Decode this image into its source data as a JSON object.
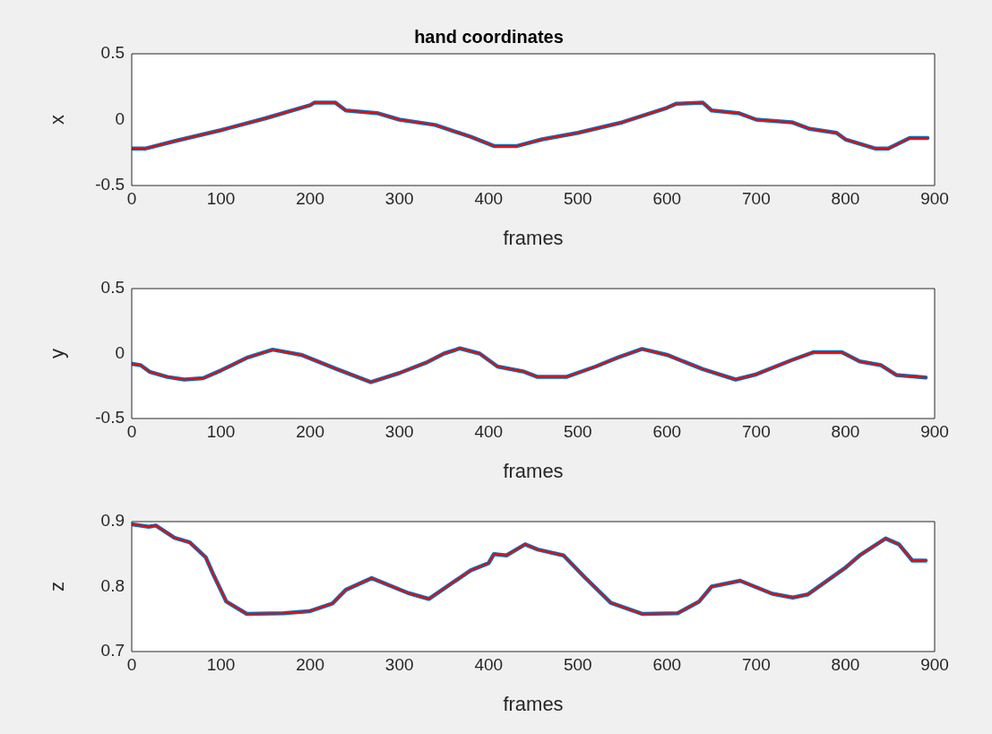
{
  "chart_data": [
    {
      "type": "line",
      "title": "hand coordinates",
      "xlabel": "frames",
      "ylabel": "x",
      "xlim": [
        0,
        900
      ],
      "xticks": [
        0,
        100,
        200,
        300,
        400,
        500,
        600,
        700,
        800,
        900
      ],
      "ylim": [
        -0.5,
        0.5
      ],
      "yticks": [
        -0.5,
        0,
        0.5
      ],
      "x": [
        0,
        15,
        50,
        100,
        150,
        200,
        205,
        228,
        240,
        275,
        300,
        340,
        380,
        406,
        432,
        460,
        500,
        550,
        600,
        610,
        640,
        650,
        680,
        700,
        740,
        760,
        790,
        800,
        834,
        848,
        872,
        892
      ],
      "series": [
        {
          "color": "#0072bd",
          "values": [
            -0.22,
            -0.22,
            -0.16,
            -0.08,
            0.01,
            0.11,
            0.13,
            0.13,
            0.07,
            0.05,
            0.0,
            -0.04,
            -0.13,
            -0.2,
            -0.2,
            -0.15,
            -0.1,
            -0.02,
            0.09,
            0.12,
            0.13,
            0.07,
            0.05,
            0.0,
            -0.02,
            -0.07,
            -0.1,
            -0.15,
            -0.22,
            -0.22,
            -0.14,
            -0.14
          ]
        },
        {
          "color": "#ff0000",
          "values": [
            -0.22,
            -0.22,
            -0.16,
            -0.08,
            0.01,
            0.11,
            0.13,
            0.13,
            0.07,
            0.05,
            0.0,
            -0.04,
            -0.13,
            -0.2,
            -0.2,
            -0.15,
            -0.1,
            -0.02,
            0.09,
            0.12,
            0.13,
            0.07,
            0.05,
            0.0,
            -0.02,
            -0.07,
            -0.1,
            -0.15,
            -0.22,
            -0.22,
            -0.14,
            -0.14
          ]
        }
      ]
    },
    {
      "type": "line",
      "xlabel": "frames",
      "ylabel": "y",
      "xlim": [
        0,
        900
      ],
      "xticks": [
        0,
        100,
        200,
        300,
        400,
        500,
        600,
        700,
        800,
        900
      ],
      "ylim": [
        -0.5,
        0.5
      ],
      "yticks": [
        -0.5,
        0,
        0.5
      ],
      "x": [
        0,
        10,
        20,
        40,
        59,
        80,
        100,
        130,
        158,
        190,
        230,
        268,
        300,
        330,
        350,
        368,
        390,
        410,
        440,
        455,
        487,
        520,
        545,
        572,
        600,
        640,
        677,
        700,
        740,
        764,
        796,
        816,
        840,
        857,
        890
      ],
      "series": [
        {
          "color": "#0072bd",
          "values": [
            -0.08,
            -0.09,
            -0.14,
            -0.18,
            -0.2,
            -0.19,
            -0.13,
            -0.03,
            0.03,
            -0.01,
            -0.12,
            -0.22,
            -0.15,
            -0.07,
            0.0,
            0.04,
            0.0,
            -0.1,
            -0.14,
            -0.18,
            -0.18,
            -0.1,
            -0.03,
            0.035,
            -0.01,
            -0.12,
            -0.2,
            -0.16,
            -0.05,
            0.01,
            0.01,
            -0.06,
            -0.09,
            -0.165,
            -0.185
          ]
        },
        {
          "color": "#ff0000",
          "values": [
            -0.08,
            -0.09,
            -0.14,
            -0.18,
            -0.2,
            -0.19,
            -0.13,
            -0.03,
            0.03,
            -0.01,
            -0.12,
            -0.22,
            -0.15,
            -0.07,
            0.0,
            0.04,
            0.0,
            -0.1,
            -0.14,
            -0.18,
            -0.18,
            -0.1,
            -0.03,
            0.035,
            -0.01,
            -0.12,
            -0.2,
            -0.16,
            -0.05,
            0.01,
            0.01,
            -0.06,
            -0.09,
            -0.165,
            -0.185
          ]
        }
      ]
    },
    {
      "type": "line",
      "xlabel": "frames",
      "ylabel": "z",
      "xlim": [
        0,
        900
      ],
      "xticks": [
        0,
        100,
        200,
        300,
        400,
        500,
        600,
        700,
        800,
        900
      ],
      "ylim": [
        0.7,
        0.9
      ],
      "yticks": [
        0.7,
        0.8,
        0.9
      ],
      "x": [
        0,
        19,
        27,
        48,
        65,
        83,
        91,
        106,
        129,
        170,
        199,
        225,
        240,
        269,
        310,
        333,
        380,
        400,
        406,
        420,
        441,
        455,
        484,
        508,
        537,
        572,
        612,
        636,
        650,
        682,
        718,
        741,
        758,
        799,
        816,
        845,
        860,
        875,
        890
      ],
      "series": [
        {
          "color": "#0072bd",
          "values": [
            0.896,
            0.892,
            0.894,
            0.875,
            0.868,
            0.845,
            0.82,
            0.777,
            0.758,
            0.759,
            0.762,
            0.774,
            0.795,
            0.813,
            0.79,
            0.781,
            0.825,
            0.836,
            0.85,
            0.848,
            0.865,
            0.857,
            0.848,
            0.814,
            0.775,
            0.758,
            0.759,
            0.777,
            0.8,
            0.809,
            0.789,
            0.783,
            0.788,
            0.828,
            0.848,
            0.874,
            0.865,
            0.84,
            0.84
          ]
        },
        {
          "color": "#ff0000",
          "values": [
            0.896,
            0.892,
            0.894,
            0.875,
            0.868,
            0.845,
            0.82,
            0.777,
            0.758,
            0.759,
            0.762,
            0.774,
            0.795,
            0.813,
            0.79,
            0.781,
            0.825,
            0.836,
            0.85,
            0.848,
            0.865,
            0.857,
            0.848,
            0.814,
            0.775,
            0.758,
            0.759,
            0.777,
            0.8,
            0.809,
            0.789,
            0.783,
            0.788,
            0.828,
            0.848,
            0.874,
            0.865,
            0.84,
            0.84
          ]
        }
      ]
    }
  ]
}
